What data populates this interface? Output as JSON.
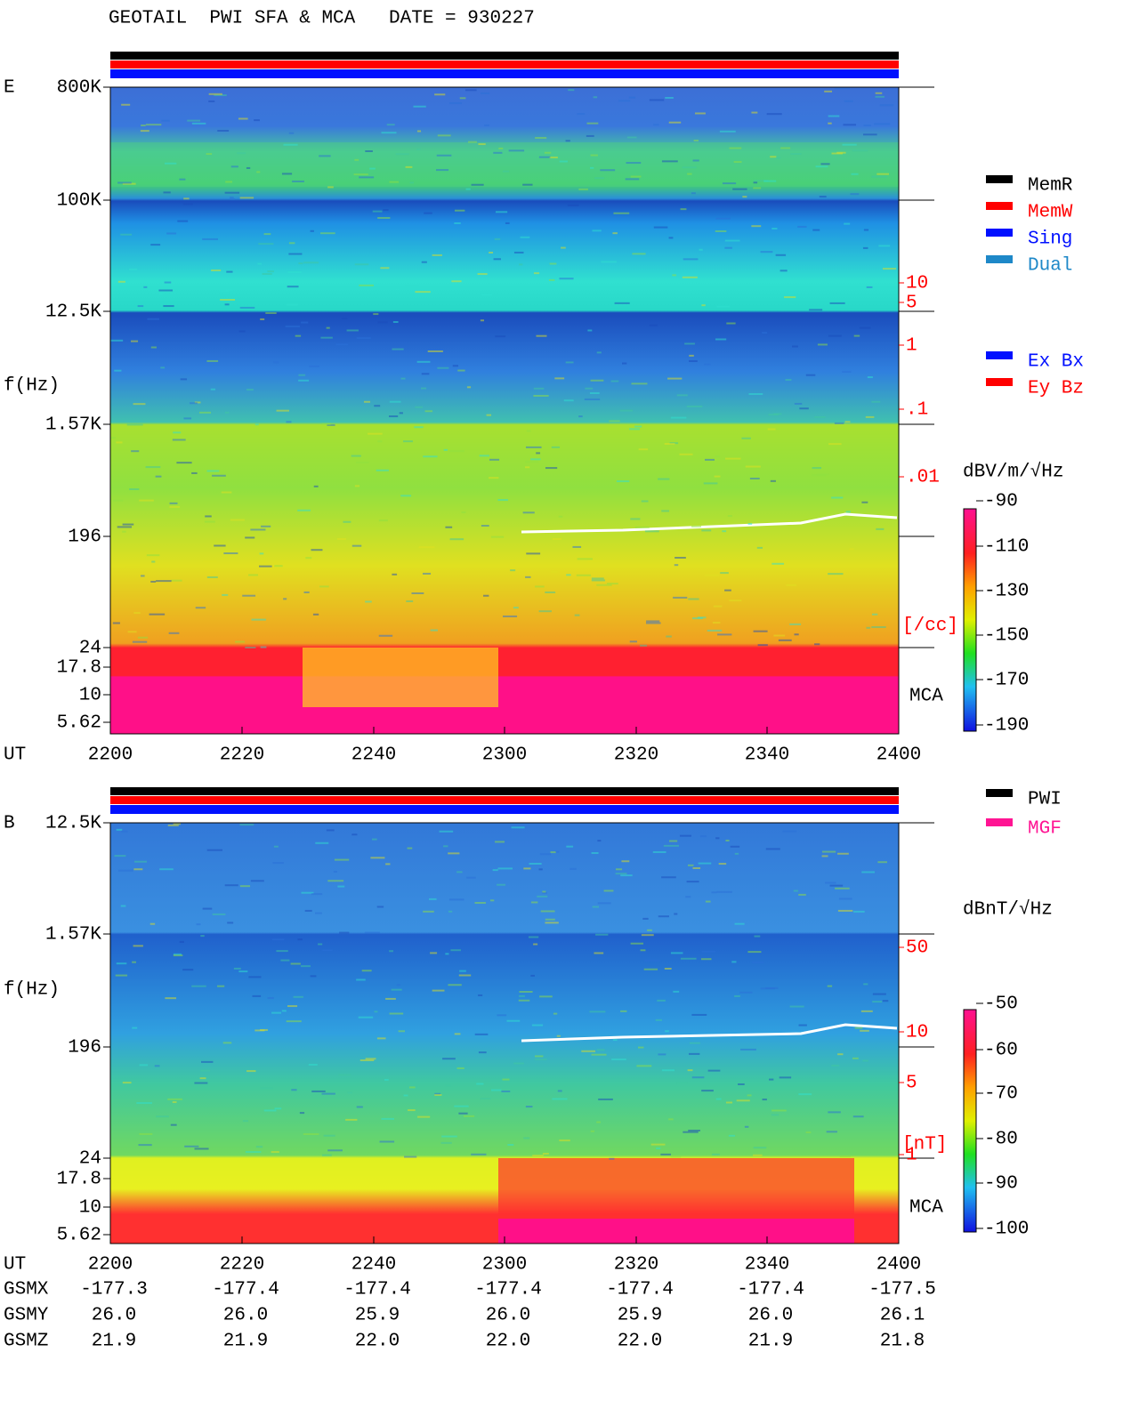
{
  "title": "GEOTAIL  PWI SFA & MCA   DATE = 930227",
  "panels": [
    {
      "label": "E",
      "ylabel": "f(Hz)",
      "xlabel": "UT",
      "yticks": [
        "800K",
        "100K",
        "12.5K",
        "1.57K",
        "196",
        "24",
        "17.8",
        "10",
        "5.62"
      ],
      "xticks": [
        "2200",
        "2220",
        "2240",
        "2300",
        "2320",
        "2340",
        "2400"
      ],
      "right_ticks": [
        "10",
        "5",
        "1",
        ".1",
        ".01"
      ],
      "right_unit": "[/cc]",
      "mca": "MCA",
      "colorbar_unit": "dBV/m/√Hz",
      "colorbar_ticks": [
        "-90",
        "-110",
        "-130",
        "-150",
        "-170",
        "-190"
      ],
      "legend": [
        "MemR",
        "MemW",
        "Sing",
        "Dual"
      ],
      "legend2": [
        "Ex Bx",
        "Ey Bz"
      ]
    },
    {
      "label": "B",
      "ylabel": "f(Hz)",
      "xlabel": "UT",
      "yticks": [
        "12.5K",
        "1.57K",
        "196",
        "24",
        "17.8",
        "10",
        "5.62"
      ],
      "xticks": [
        "2200",
        "2220",
        "2240",
        "2300",
        "2320",
        "2340",
        "2400"
      ],
      "right_ticks": [
        "50",
        "10",
        "5",
        "1"
      ],
      "right_unit": "[nT]",
      "mca": "MCA",
      "colorbar_unit": "dBnT/√Hz",
      "colorbar_ticks": [
        "-50",
        "-60",
        "-70",
        "-80",
        "-90",
        "-100"
      ],
      "legend": [
        "PWI",
        "MGF"
      ]
    }
  ],
  "orbit": {
    "rows": [
      {
        "label": "GSMX",
        "values": [
          "-177.3",
          "-177.4",
          "-177.4",
          "-177.4",
          "-177.4",
          "-177.4",
          "-177.5"
        ]
      },
      {
        "label": "GSMY",
        "values": [
          "26.0",
          "26.0",
          "25.9",
          "26.0",
          "25.9",
          "26.0",
          "26.1"
        ]
      },
      {
        "label": "GSMZ",
        "values": [
          "21.9",
          "21.9",
          "22.0",
          "22.0",
          "22.0",
          "21.9",
          "21.8"
        ]
      }
    ]
  }
}
